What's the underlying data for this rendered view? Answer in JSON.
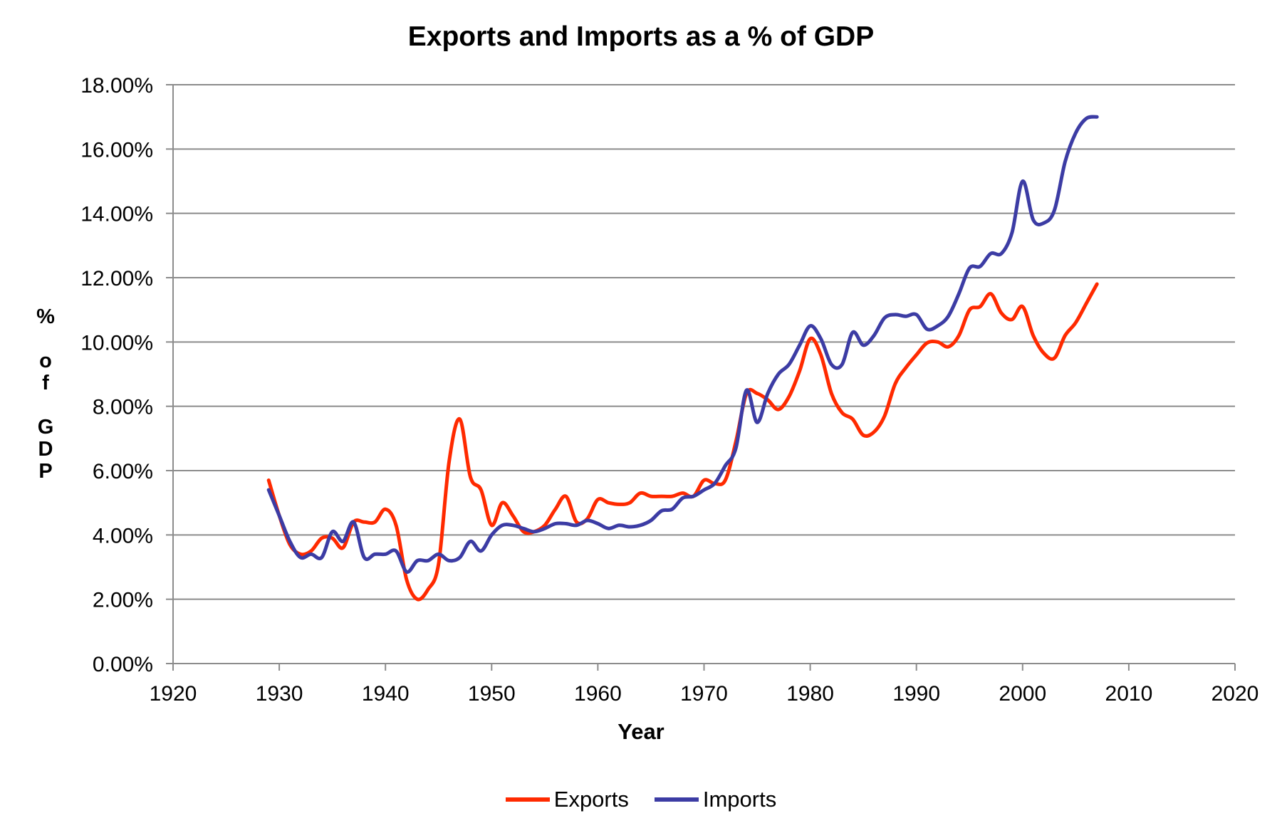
{
  "chart_data": {
    "type": "line",
    "title": "Exports and Imports as a % of GDP",
    "xlabel": "Year",
    "ylabel": "% of GDP",
    "xlim": [
      1920,
      2020
    ],
    "ylim": [
      0,
      18
    ],
    "x_ticks": [
      1920,
      1930,
      1940,
      1950,
      1960,
      1970,
      1980,
      1990,
      2000,
      2010,
      2020
    ],
    "x_tick_labels": [
      "1920",
      "1930",
      "1940",
      "1950",
      "1960",
      "1970",
      "1980",
      "1990",
      "2000",
      "2010",
      "2020"
    ],
    "y_ticks": [
      0,
      2,
      4,
      6,
      8,
      10,
      12,
      14,
      16,
      18
    ],
    "y_tick_labels": [
      "0.00%",
      "2.00%",
      "4.00%",
      "6.00%",
      "8.00%",
      "10.00%",
      "12.00%",
      "14.00%",
      "16.00%",
      "18.00%"
    ],
    "grid": "horizontal",
    "legend_position": "bottom",
    "x": [
      1929,
      1930,
      1931,
      1932,
      1933,
      1934,
      1935,
      1936,
      1937,
      1938,
      1939,
      1940,
      1941,
      1942,
      1943,
      1944,
      1945,
      1946,
      1947,
      1948,
      1949,
      1950,
      1951,
      1952,
      1953,
      1954,
      1955,
      1956,
      1957,
      1958,
      1959,
      1960,
      1961,
      1962,
      1963,
      1964,
      1965,
      1966,
      1967,
      1968,
      1969,
      1970,
      1971,
      1972,
      1973,
      1974,
      1975,
      1976,
      1977,
      1978,
      1979,
      1980,
      1981,
      1982,
      1983,
      1984,
      1985,
      1986,
      1987,
      1988,
      1989,
      1990,
      1991,
      1992,
      1993,
      1994,
      1995,
      1996,
      1997,
      1998,
      1999,
      2000,
      2001,
      2002,
      2003,
      2004,
      2005,
      2006,
      2007
    ],
    "series": [
      {
        "name": "Exports",
        "color": "#ff2a00",
        "values": [
          5.7,
          4.6,
          3.7,
          3.4,
          3.5,
          3.9,
          3.9,
          3.6,
          4.4,
          4.4,
          4.4,
          4.8,
          4.3,
          2.6,
          2.0,
          2.3,
          3.1,
          6.3,
          7.6,
          5.8,
          5.4,
          4.3,
          5.0,
          4.6,
          4.1,
          4.1,
          4.3,
          4.8,
          5.2,
          4.4,
          4.5,
          5.1,
          5.0,
          4.95,
          5.0,
          5.3,
          5.2,
          5.2,
          5.2,
          5.3,
          5.2,
          5.7,
          5.6,
          5.7,
          6.9,
          8.4,
          8.4,
          8.2,
          7.9,
          8.3,
          9.1,
          10.1,
          9.6,
          8.4,
          7.8,
          7.6,
          7.1,
          7.2,
          7.7,
          8.7,
          9.2,
          9.6,
          9.97,
          10.0,
          9.85,
          10.2,
          11.0,
          11.1,
          11.5,
          10.9,
          10.7,
          11.1,
          10.2,
          9.65,
          9.5,
          10.2,
          10.6,
          11.2,
          11.8
        ]
      },
      {
        "name": "Imports",
        "color": "#3c3ca4",
        "values": [
          5.4,
          4.6,
          3.8,
          3.3,
          3.4,
          3.3,
          4.1,
          3.8,
          4.4,
          3.3,
          3.4,
          3.4,
          3.5,
          2.85,
          3.2,
          3.2,
          3.4,
          3.2,
          3.3,
          3.8,
          3.5,
          4.0,
          4.3,
          4.3,
          4.2,
          4.1,
          4.2,
          4.35,
          4.35,
          4.3,
          4.45,
          4.35,
          4.2,
          4.3,
          4.25,
          4.3,
          4.45,
          4.75,
          4.8,
          5.15,
          5.2,
          5.4,
          5.6,
          6.15,
          6.7,
          8.5,
          7.5,
          8.4,
          9.0,
          9.3,
          9.9,
          10.5,
          10.1,
          9.3,
          9.3,
          10.3,
          9.9,
          10.2,
          10.75,
          10.85,
          10.8,
          10.85,
          10.4,
          10.5,
          10.8,
          11.5,
          12.3,
          12.35,
          12.75,
          12.75,
          13.4,
          15.0,
          13.8,
          13.7,
          14.1,
          15.6,
          16.5,
          16.95,
          17.0
        ]
      }
    ]
  }
}
